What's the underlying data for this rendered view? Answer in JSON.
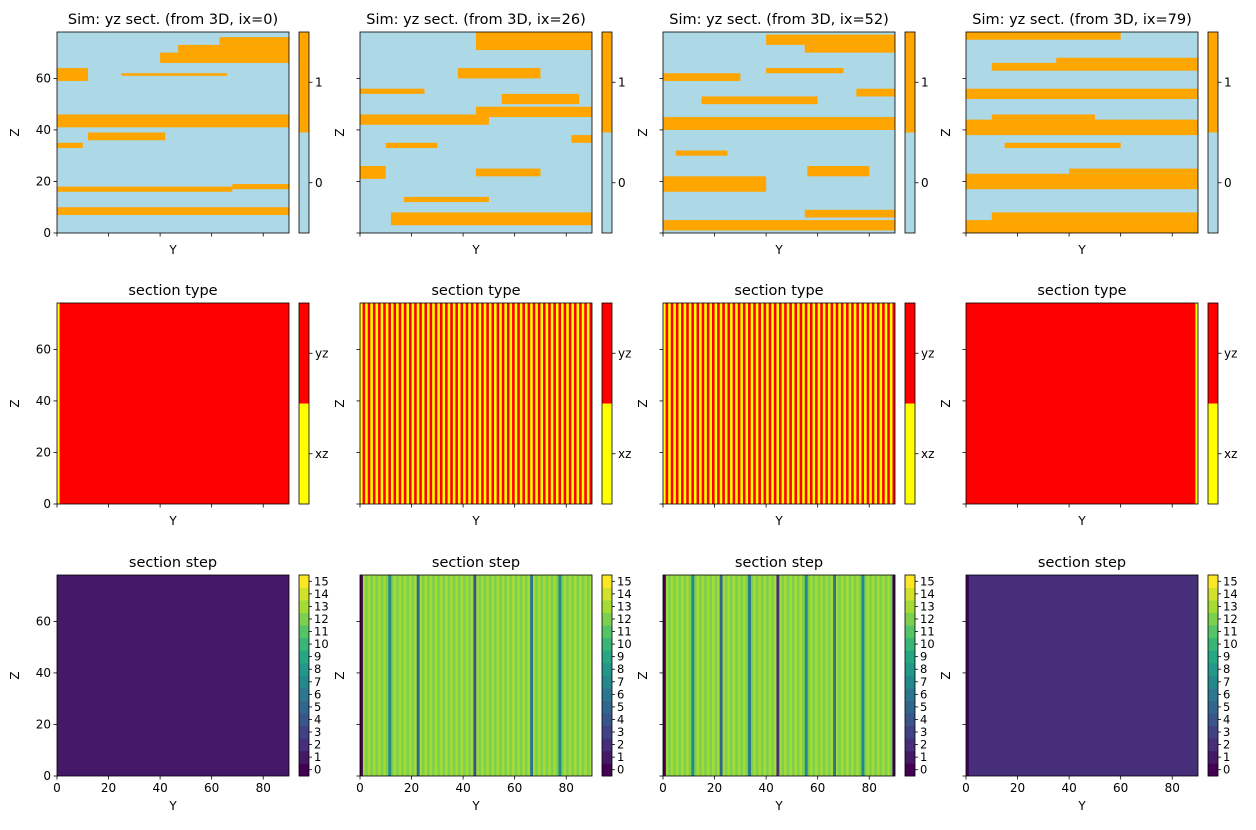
{
  "figure": {
    "grid": "3 rows x 4 columns of heatmap panels, each with its own colorbar"
  },
  "chart_data": [
    {
      "type": "heatmap",
      "title": "Sim: yz sect. (from 3D, ix=0)",
      "xlabel": "Y",
      "ylabel": "Z",
      "xlim": [
        0,
        90
      ],
      "ylim": [
        0,
        78
      ],
      "yticks": [
        0,
        20,
        40,
        60
      ],
      "xticks": [
        0,
        20,
        40,
        60,
        80
      ],
      "xtick_labels_shown": false,
      "ytick_labels_shown": true,
      "colorbar": {
        "ticks": [
          "0",
          "1"
        ],
        "colors": [
          "#add8e6",
          "#ffa500"
        ]
      },
      "background_value": 0,
      "bands": [
        {
          "y_range": [
            7,
            10
          ],
          "x_range": [
            0,
            90
          ],
          "value": 1
        },
        {
          "y_range": [
            16,
            18
          ],
          "x_range": [
            0,
            68
          ],
          "value": 1
        },
        {
          "y_range": [
            17,
            19
          ],
          "x_range": [
            68,
            90
          ],
          "value": 1
        },
        {
          "y_range": [
            33,
            35
          ],
          "x_range": [
            0,
            10
          ],
          "value": 1
        },
        {
          "y_range": [
            36,
            39
          ],
          "x_range": [
            12,
            42
          ],
          "value": 1
        },
        {
          "y_range": [
            41,
            46
          ],
          "x_range": [
            0,
            90
          ],
          "value": 1
        },
        {
          "y_range": [
            59,
            64
          ],
          "x_range": [
            0,
            12
          ],
          "value": 1
        },
        {
          "y_range": [
            61,
            62
          ],
          "x_range": [
            25,
            66
          ],
          "value": 1
        },
        {
          "y_range": [
            66,
            70
          ],
          "x_range": [
            40,
            90
          ],
          "value": 1
        },
        {
          "y_range": [
            70,
            73
          ],
          "x_range": [
            47,
            90
          ],
          "value": 1
        },
        {
          "y_range": [
            73,
            76
          ],
          "x_range": [
            63,
            90
          ],
          "value": 1
        }
      ]
    },
    {
      "type": "heatmap",
      "title": "Sim: yz sect. (from 3D, ix=26)",
      "xlabel": "Y",
      "ylabel": "Z",
      "xlim": [
        0,
        90
      ],
      "ylim": [
        0,
        78
      ],
      "yticks": [
        0,
        20,
        40,
        60
      ],
      "xticks": [
        0,
        20,
        40,
        60,
        80
      ],
      "xtick_labels_shown": false,
      "ytick_labels_shown": false,
      "colorbar": {
        "ticks": [
          "0",
          "1"
        ],
        "colors": [
          "#add8e6",
          "#ffa500"
        ]
      },
      "background_value": 0,
      "bands": [
        {
          "y_range": [
            3,
            8
          ],
          "x_range": [
            12,
            90
          ],
          "value": 1
        },
        {
          "y_range": [
            12,
            14
          ],
          "x_range": [
            17,
            50
          ],
          "value": 1
        },
        {
          "y_range": [
            21,
            26
          ],
          "x_range": [
            0,
            10
          ],
          "value": 1
        },
        {
          "y_range": [
            22,
            25
          ],
          "x_range": [
            45,
            70
          ],
          "value": 1
        },
        {
          "y_range": [
            33,
            35
          ],
          "x_range": [
            10,
            30
          ],
          "value": 1
        },
        {
          "y_range": [
            35,
            38
          ],
          "x_range": [
            82,
            90
          ],
          "value": 1
        },
        {
          "y_range": [
            42,
            46
          ],
          "x_range": [
            0,
            50
          ],
          "value": 1
        },
        {
          "y_range": [
            45,
            49
          ],
          "x_range": [
            45,
            90
          ],
          "value": 1
        },
        {
          "y_range": [
            50,
            54
          ],
          "x_range": [
            55,
            85
          ],
          "value": 1
        },
        {
          "y_range": [
            54,
            56
          ],
          "x_range": [
            0,
            25
          ],
          "value": 1
        },
        {
          "y_range": [
            60,
            64
          ],
          "x_range": [
            38,
            70
          ],
          "value": 1
        },
        {
          "y_range": [
            71,
            78
          ],
          "x_range": [
            45,
            90
          ],
          "value": 1
        }
      ]
    },
    {
      "type": "heatmap",
      "title": "Sim: yz sect. (from 3D, ix=52)",
      "xlabel": "Y",
      "ylabel": "Z",
      "xlim": [
        0,
        90
      ],
      "ylim": [
        0,
        78
      ],
      "yticks": [
        0,
        20,
        40,
        60
      ],
      "xticks": [
        0,
        20,
        40,
        60,
        80
      ],
      "xtick_labels_shown": false,
      "ytick_labels_shown": false,
      "colorbar": {
        "ticks": [
          "0",
          "1"
        ],
        "colors": [
          "#add8e6",
          "#ffa500"
        ]
      },
      "background_value": 0,
      "bands": [
        {
          "y_range": [
            1,
            5
          ],
          "x_range": [
            0,
            90
          ],
          "value": 1
        },
        {
          "y_range": [
            6,
            9
          ],
          "x_range": [
            55,
            90
          ],
          "value": 1
        },
        {
          "y_range": [
            16,
            22
          ],
          "x_range": [
            0,
            40
          ],
          "value": 1
        },
        {
          "y_range": [
            22,
            26
          ],
          "x_range": [
            56,
            80
          ],
          "value": 1
        },
        {
          "y_range": [
            30,
            32
          ],
          "x_range": [
            5,
            25
          ],
          "value": 1
        },
        {
          "y_range": [
            40,
            45
          ],
          "x_range": [
            0,
            90
          ],
          "value": 1
        },
        {
          "y_range": [
            50,
            53
          ],
          "x_range": [
            15,
            60
          ],
          "value": 1
        },
        {
          "y_range": [
            53,
            56
          ],
          "x_range": [
            75,
            90
          ],
          "value": 1
        },
        {
          "y_range": [
            59,
            62
          ],
          "x_range": [
            0,
            30
          ],
          "value": 1
        },
        {
          "y_range": [
            62,
            64
          ],
          "x_range": [
            40,
            70
          ],
          "value": 1
        },
        {
          "y_range": [
            70,
            73
          ],
          "x_range": [
            55,
            90
          ],
          "value": 1
        },
        {
          "y_range": [
            73,
            77
          ],
          "x_range": [
            40,
            90
          ],
          "value": 1
        }
      ]
    },
    {
      "type": "heatmap",
      "title": "Sim: yz sect. (from 3D, ix=79)",
      "xlabel": "Y",
      "ylabel": "Z",
      "xlim": [
        0,
        90
      ],
      "ylim": [
        0,
        78
      ],
      "yticks": [
        0,
        20,
        40,
        60
      ],
      "xticks": [
        0,
        20,
        40,
        60,
        80
      ],
      "xtick_labels_shown": false,
      "ytick_labels_shown": false,
      "colorbar": {
        "ticks": [
          "0",
          "1"
        ],
        "colors": [
          "#add8e6",
          "#ffa500"
        ]
      },
      "background_value": 0,
      "bands": [
        {
          "y_range": [
            0,
            5
          ],
          "x_range": [
            0,
            90
          ],
          "value": 1
        },
        {
          "y_range": [
            5,
            8
          ],
          "x_range": [
            10,
            90
          ],
          "value": 1
        },
        {
          "y_range": [
            17,
            23
          ],
          "x_range": [
            0,
            90
          ],
          "value": 1
        },
        {
          "y_range": [
            23,
            25
          ],
          "x_range": [
            40,
            90
          ],
          "value": 1
        },
        {
          "y_range": [
            33,
            35
          ],
          "x_range": [
            15,
            60
          ],
          "value": 1
        },
        {
          "y_range": [
            38,
            44
          ],
          "x_range": [
            0,
            90
          ],
          "value": 1
        },
        {
          "y_range": [
            44,
            46
          ],
          "x_range": [
            10,
            50
          ],
          "value": 1
        },
        {
          "y_range": [
            52,
            56
          ],
          "x_range": [
            0,
            90
          ],
          "value": 1
        },
        {
          "y_range": [
            63,
            66
          ],
          "x_range": [
            10,
            90
          ],
          "value": 1
        },
        {
          "y_range": [
            66,
            68
          ],
          "x_range": [
            35,
            90
          ],
          "value": 1
        },
        {
          "y_range": [
            75,
            78
          ],
          "x_range": [
            0,
            60
          ],
          "value": 1
        }
      ]
    },
    {
      "type": "heatmap",
      "title": "section type",
      "xlabel": "Y",
      "ylabel": "Z",
      "xlim": [
        0,
        90
      ],
      "ylim": [
        0,
        78
      ],
      "yticks": [
        0,
        20,
        40,
        60
      ],
      "xticks": [
        0,
        20,
        40,
        60,
        80
      ],
      "xtick_labels_shown": false,
      "ytick_labels_shown": true,
      "colorbar": {
        "ticks": [
          "xz",
          "yz"
        ],
        "colors": [
          "#ffff00",
          "#ff0000"
        ]
      },
      "column_values": "column 0 = xz, all others = yz"
    },
    {
      "type": "heatmap",
      "title": "section type",
      "xlabel": "Y",
      "ylabel": "Z",
      "xlim": [
        0,
        90
      ],
      "ylim": [
        0,
        78
      ],
      "yticks": [
        0,
        20,
        40,
        60
      ],
      "xticks": [
        0,
        20,
        40,
        60,
        80
      ],
      "xtick_labels_shown": false,
      "ytick_labels_shown": false,
      "colorbar": {
        "ticks": [
          "xz",
          "yz"
        ],
        "colors": [
          "#ffff00",
          "#ff0000"
        ]
      },
      "column_values": "alternating xz / yz stripes of width 1 starting at Y=0"
    },
    {
      "type": "heatmap",
      "title": "section type",
      "xlabel": "Y",
      "ylabel": "Z",
      "xlim": [
        0,
        90
      ],
      "ylim": [
        0,
        78
      ],
      "yticks": [
        0,
        20,
        40,
        60
      ],
      "xticks": [
        0,
        20,
        40,
        60,
        80
      ],
      "xtick_labels_shown": false,
      "ytick_labels_shown": false,
      "colorbar": {
        "ticks": [
          "xz",
          "yz"
        ],
        "colors": [
          "#ffff00",
          "#ff0000"
        ]
      },
      "column_values": "alternating xz / yz stripes of width 1 starting at Y=0"
    },
    {
      "type": "heatmap",
      "title": "section type",
      "xlabel": "Y",
      "ylabel": "Z",
      "xlim": [
        0,
        90
      ],
      "ylim": [
        0,
        78
      ],
      "yticks": [
        0,
        20,
        40,
        60
      ],
      "xticks": [
        0,
        20,
        40,
        60,
        80
      ],
      "xtick_labels_shown": false,
      "ytick_labels_shown": false,
      "colorbar": {
        "ticks": [
          "xz",
          "yz"
        ],
        "colors": [
          "#ffff00",
          "#ff0000"
        ]
      },
      "column_values": "last column (Y=89) = xz, all others = yz"
    },
    {
      "type": "heatmap",
      "title": "section step",
      "xlabel": "Y",
      "ylabel": "Z",
      "xlim": [
        0,
        90
      ],
      "ylim": [
        0,
        78
      ],
      "yticks": [
        0,
        20,
        40,
        60
      ],
      "xticks": [
        0,
        20,
        40,
        60,
        80
      ],
      "xtick_labels_shown": true,
      "ytick_labels_shown": true,
      "colorbar": {
        "ticks": [
          "0",
          "1",
          "2",
          "3",
          "4",
          "5",
          "6",
          "7",
          "8",
          "9",
          "10",
          "11",
          "12",
          "13",
          "14",
          "15"
        ],
        "colormap": "viridis",
        "range": [
          0,
          15
        ]
      },
      "uniform_value": 1
    },
    {
      "type": "heatmap",
      "title": "section step",
      "xlabel": "Y",
      "ylabel": "Z",
      "xlim": [
        0,
        90
      ],
      "ylim": [
        0,
        78
      ],
      "yticks": [
        0,
        20,
        40,
        60
      ],
      "xticks": [
        0,
        20,
        40,
        60,
        80
      ],
      "xtick_labels_shown": true,
      "ytick_labels_shown": false,
      "colorbar": {
        "ticks": [
          "0",
          "1",
          "2",
          "3",
          "4",
          "5",
          "6",
          "7",
          "8",
          "9",
          "10",
          "11",
          "12",
          "13",
          "14",
          "15"
        ],
        "colormap": "viridis",
        "range": [
          0,
          15
        ]
      },
      "column_values": "mostly 12-13 with occasional lower values (about 5-9) at a few columns",
      "low_columns": [
        [
          0,
          0
        ],
        [
          11,
          7
        ],
        [
          22,
          5
        ],
        [
          44,
          4
        ],
        [
          66,
          6
        ],
        [
          77,
          7
        ]
      ]
    },
    {
      "type": "heatmap",
      "title": "section step",
      "xlabel": "Y",
      "ylabel": "Z",
      "xlim": [
        0,
        90
      ],
      "ylim": [
        0,
        78
      ],
      "yticks": [
        0,
        20,
        40,
        60
      ],
      "xticks": [
        0,
        20,
        40,
        60,
        80
      ],
      "xtick_labels_shown": true,
      "ytick_labels_shown": false,
      "colorbar": {
        "ticks": [
          "0",
          "1",
          "2",
          "3",
          "4",
          "5",
          "6",
          "7",
          "8",
          "9",
          "10",
          "11",
          "12",
          "13",
          "14",
          "15"
        ],
        "colormap": "viridis",
        "range": [
          0,
          15
        ]
      },
      "column_values": "mostly 12-13 with occasional lower values (about 5-9) at a few columns",
      "low_columns": [
        [
          0,
          0
        ],
        [
          11,
          7
        ],
        [
          22,
          5
        ],
        [
          33,
          6
        ],
        [
          44,
          2
        ],
        [
          55,
          7
        ],
        [
          66,
          6
        ],
        [
          77,
          7
        ],
        [
          89,
          0
        ]
      ]
    },
    {
      "type": "heatmap",
      "title": "section step",
      "xlabel": "Y",
      "ylabel": "Z",
      "xlim": [
        0,
        90
      ],
      "ylim": [
        0,
        78
      ],
      "yticks": [
        0,
        20,
        40,
        60
      ],
      "xticks": [
        0,
        20,
        40,
        60,
        80
      ],
      "xtick_labels_shown": true,
      "ytick_labels_shown": false,
      "colorbar": {
        "ticks": [
          "0",
          "1",
          "2",
          "3",
          "4",
          "5",
          "6",
          "7",
          "8",
          "9",
          "10",
          "11",
          "12",
          "13",
          "14",
          "15"
        ],
        "colormap": "viridis",
        "range": [
          0,
          15
        ]
      },
      "uniform_value": 2,
      "low_columns": [
        [
          0,
          0
        ]
      ]
    }
  ]
}
